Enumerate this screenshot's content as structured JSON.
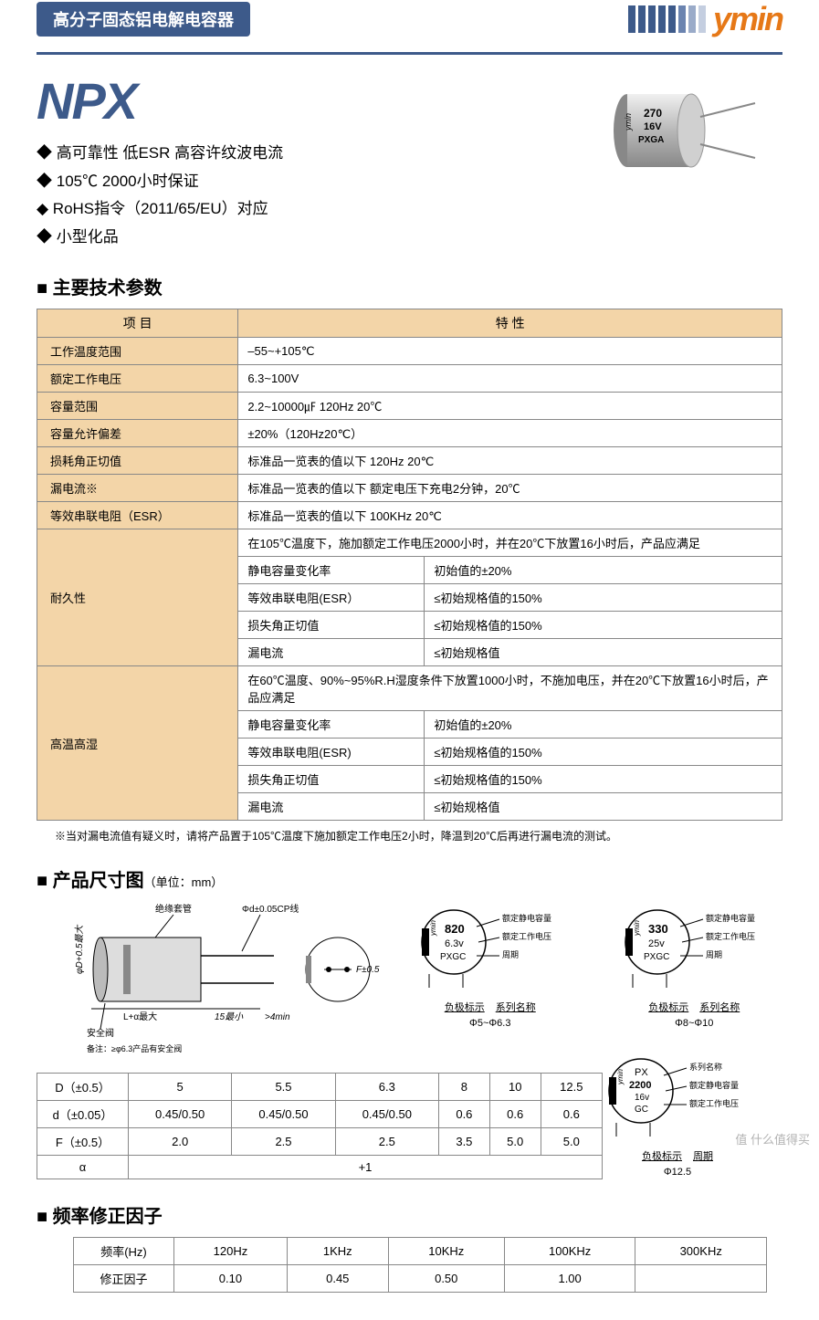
{
  "header": {
    "title": "高分子固态铝电解电容器",
    "logo": "ymin",
    "bar_colors": [
      "#3d5a8a",
      "#3d5a8a",
      "#3d5a8a",
      "#3d5a8a",
      "#3d5a8a",
      "#6b84b0",
      "#9aabc9",
      "#c4cee0"
    ]
  },
  "product": {
    "name": "NPX",
    "features": [
      "高可靠性  低ESR  高容许纹波电流",
      "105℃  2000小时保证",
      "RoHS指令（2011/65/EU）对应",
      "小型化品"
    ],
    "img_labels": {
      "cap": "270",
      "volt": "16V",
      "code": "PXGA"
    }
  },
  "spec": {
    "title": "主要技术参数",
    "header": [
      "项 目",
      "特 性"
    ],
    "rows": [
      {
        "k": "工作温度范围",
        "v": "–55~+105℃"
      },
      {
        "k": "额定工作电压",
        "v": "6.3~100V"
      },
      {
        "k": "容量范围",
        "v": "2.2~10000㎌  120Hz  20℃"
      },
      {
        "k": "容量允许偏差",
        "v": "±20%（120Hz20℃）"
      },
      {
        "k": "损耗角正切值",
        "v": "标准品一览表的值以下 120Hz  20℃"
      },
      {
        "k": "漏电流※",
        "v": "标准品一览表的值以下 额定电压下充电2分钟，20℃"
      },
      {
        "k": "等效串联电阻（ESR）",
        "v": "标准品一览表的值以下 100KHz  20℃"
      }
    ],
    "durability": {
      "k": "耐久性",
      "intro": "在105℃温度下，施加额定工作电压2000小时，并在20℃下放置16小时后，产品应满足",
      "items": [
        [
          "静电容量变化率",
          "初始值的±20%"
        ],
        [
          "等效串联电阻(ESR）",
          "≤初始规格值的150%"
        ],
        [
          "损失角正切值",
          "≤初始规格值的150%"
        ],
        [
          "漏电流",
          "≤初始规格值"
        ]
      ]
    },
    "humidity": {
      "k": "高温高湿",
      "intro": "在60℃温度、90%~95%R.H湿度条件下放置1000小时，不施加电压，并在20℃下放置16小时后，产品应满足",
      "items": [
        [
          "静电容量变化率",
          "初始值的±20%"
        ],
        [
          "等效串联电阻(ESR)",
          "≤初始规格值的150%"
        ],
        [
          "损失角正切值",
          "≤初始规格值的150%"
        ],
        [
          "漏电流",
          "≤初始规格值"
        ]
      ]
    },
    "note": "※当对漏电流值有疑义时，请将产品置于105℃温度下施加额定工作电压2小时，降温到20℃后再进行漏电流的测试。"
  },
  "dim": {
    "title": "产品尺寸图",
    "unit": "（单位：mm）",
    "draw": {
      "sleeve": "绝缘套管",
      "line": "Φd±0.05CP线",
      "safety": "安全阀",
      "note": "备注：≥φ6.3产品有安全阀",
      "F": "F±0.5",
      "L": "L+α最大",
      "min15": "15最小",
      "min4": ">4min",
      "D": "φD+0.5最大"
    },
    "marks": [
      {
        "cap": "820",
        "volt": "6.3v",
        "code": "PXGC",
        "range": "Φ5~Φ6.3",
        "l1": "额定静电容量",
        "l2": "额定工作电压",
        "l3": "周期",
        "b1": "负极标示",
        "b2": "系列名称"
      },
      {
        "cap": "330",
        "volt": "25v",
        "code": "PXGC",
        "range": "Φ8~Φ10",
        "l1": "额定静电容量",
        "l2": "额定工作电压",
        "l3": "周期",
        "b1": "负极标示",
        "b2": "系列名称"
      },
      {
        "series": "PX",
        "cap": "2200",
        "volt": "16v",
        "code": "GC",
        "range": "Φ12.5",
        "l1": "系列名称",
        "l2": "额定静电容量",
        "l3": "额定工作电压",
        "b1": "负极标示",
        "b2": "周期"
      }
    ],
    "table": {
      "rows": [
        [
          "D（±0.5）",
          "5",
          "5.5",
          "6.3",
          "8",
          "10",
          "12.5"
        ],
        [
          "d（±0.05）",
          "0.45/0.50",
          "0.45/0.50",
          "0.45/0.50",
          "0.6",
          "0.6",
          "0.6"
        ],
        [
          "F（±0.5）",
          "2.0",
          "2.5",
          "2.5",
          "3.5",
          "5.0",
          "5.0"
        ],
        [
          "α",
          "+1"
        ]
      ]
    }
  },
  "freq": {
    "title": "频率修正因子",
    "rows": [
      [
        "频率(Hz)",
        "120Hz",
        "1KHz",
        "10KHz",
        "100KHz",
        "300KHz"
      ],
      [
        "修正因子",
        "0.10",
        "0.45",
        "0.50",
        "1.00",
        ""
      ]
    ]
  },
  "watermark": "值 什么值得买"
}
